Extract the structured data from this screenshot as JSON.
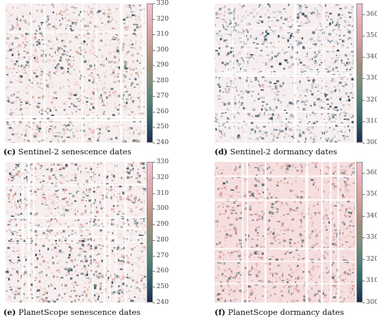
{
  "panels": [
    {
      "id": "c",
      "letter": "(c)",
      "caption": "Sentinel-2 senescence dates",
      "colorbar": {
        "min": 240,
        "max": 330,
        "ticks": [
          330,
          320,
          310,
          300,
          290,
          280,
          270,
          260,
          250,
          240
        ]
      }
    },
    {
      "id": "d",
      "letter": "(d)",
      "caption": "Sentinel-2 dormancy dates",
      "colorbar": {
        "min": 300,
        "max": 365,
        "ticks": [
          360,
          350,
          340,
          330,
          320,
          310,
          300
        ]
      }
    },
    {
      "id": "e",
      "letter": "(e)",
      "caption": "PlanetScope senescence dates",
      "colorbar": {
        "min": 240,
        "max": 330,
        "ticks": [
          330,
          320,
          310,
          300,
          290,
          280,
          270,
          260,
          250,
          240
        ]
      }
    },
    {
      "id": "f",
      "letter": "(f)",
      "caption": "PlanetScope dormancy dates",
      "colorbar": {
        "min": 300,
        "max": 365,
        "ticks": [
          360,
          350,
          340,
          330,
          320,
          310,
          300
        ]
      }
    }
  ],
  "colormap": [
    "#1b2a52",
    "#2e5e6b",
    "#4f8276",
    "#7e8f78",
    "#a88a78",
    "#cf9a94",
    "#e9aab0",
    "#f7bfd0"
  ]
}
